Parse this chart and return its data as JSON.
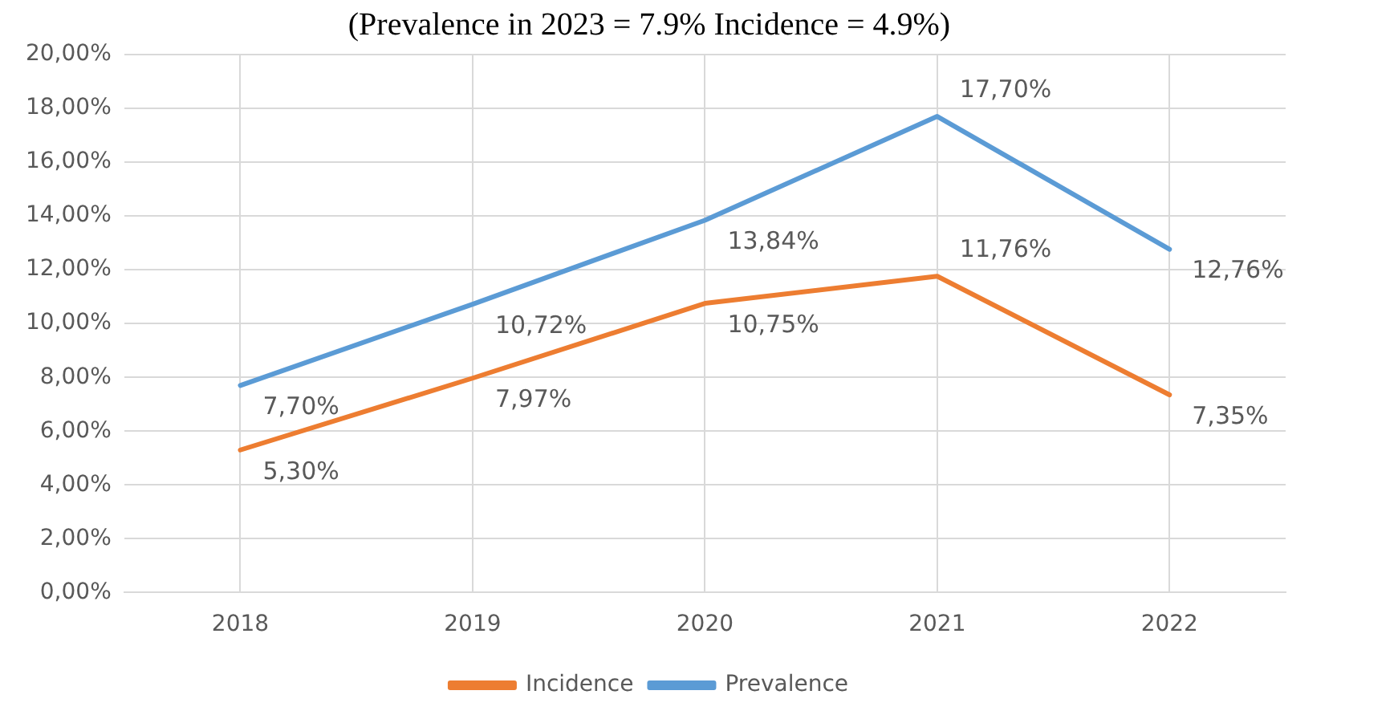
{
  "chart_data": {
    "type": "line",
    "title": "(Prevalence in 2023 = 7.9% Incidence = 4.9%)",
    "categories": [
      "2018",
      "2019",
      "2020",
      "2021",
      "2022"
    ],
    "series": [
      {
        "name": "Incidence",
        "color": "#ed7d31",
        "values": [
          5.3,
          7.97,
          10.75,
          11.76,
          7.35
        ],
        "value_labels": [
          "5,30%",
          "7,97%",
          "10,75%",
          "11,76%",
          "7,35%"
        ]
      },
      {
        "name": "Prevalence",
        "color": "#5b9bd5",
        "values": [
          7.7,
          10.72,
          13.84,
          17.7,
          12.76
        ],
        "value_labels": [
          "7,70%",
          "10,72%",
          "13,84%",
          "17,70%",
          "12,76%"
        ]
      }
    ],
    "ylim": [
      0,
      20
    ],
    "yticks": [
      {
        "value": 0,
        "label": "0,00%"
      },
      {
        "value": 2,
        "label": "2,00%"
      },
      {
        "value": 4,
        "label": "4,00%"
      },
      {
        "value": 6,
        "label": "6,00%"
      },
      {
        "value": 8,
        "label": "8,00%"
      },
      {
        "value": 10,
        "label": "10,00%"
      },
      {
        "value": 12,
        "label": "12,00%"
      },
      {
        "value": 14,
        "label": "14,00%"
      },
      {
        "value": 16,
        "label": "16,00%"
      },
      {
        "value": 18,
        "label": "18,00%"
      },
      {
        "value": 20,
        "label": "20,00%"
      }
    ],
    "grid": true,
    "legend": "bottom",
    "marker": "none",
    "line_style": "solid"
  }
}
